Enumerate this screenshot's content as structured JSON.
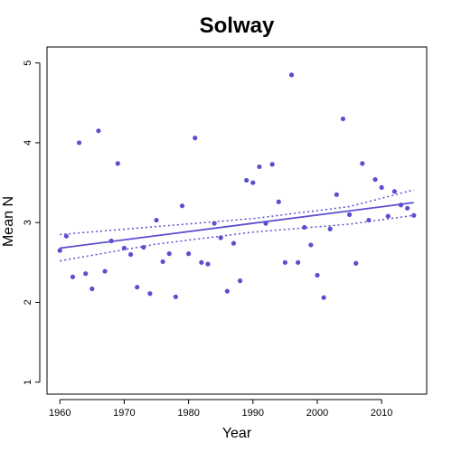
{
  "chart_data": {
    "type": "scatter",
    "title": "Solway",
    "xlabel": "Year",
    "ylabel": "Mean N",
    "xlim": [
      1958,
      2017
    ],
    "ylim": [
      0.85,
      5.2
    ],
    "x_ticks": [
      1960,
      1970,
      1980,
      1990,
      2000,
      2010
    ],
    "y_ticks": [
      1,
      2,
      3,
      4,
      5
    ],
    "grid": false,
    "point_color": "#5a4fcf",
    "line_color": "#5a4fcf",
    "points": [
      {
        "x": 1960,
        "y": 2.65
      },
      {
        "x": 1961,
        "y": 2.83
      },
      {
        "x": 1962,
        "y": 2.32
      },
      {
        "x": 1963,
        "y": 4.0
      },
      {
        "x": 1964,
        "y": 2.36
      },
      {
        "x": 1965,
        "y": 2.17
      },
      {
        "x": 1966,
        "y": 4.15
      },
      {
        "x": 1967,
        "y": 2.39
      },
      {
        "x": 1968,
        "y": 2.77
      },
      {
        "x": 1969,
        "y": 3.74
      },
      {
        "x": 1970,
        "y": 2.68
      },
      {
        "x": 1971,
        "y": 2.6
      },
      {
        "x": 1972,
        "y": 2.19
      },
      {
        "x": 1973,
        "y": 2.69
      },
      {
        "x": 1974,
        "y": 2.11
      },
      {
        "x": 1975,
        "y": 3.03
      },
      {
        "x": 1976,
        "y": 2.51
      },
      {
        "x": 1977,
        "y": 2.61
      },
      {
        "x": 1978,
        "y": 2.07
      },
      {
        "x": 1979,
        "y": 3.21
      },
      {
        "x": 1980,
        "y": 2.61
      },
      {
        "x": 1981,
        "y": 4.06
      },
      {
        "x": 1982,
        "y": 2.5
      },
      {
        "x": 1983,
        "y": 2.48
      },
      {
        "x": 1984,
        "y": 2.99
      },
      {
        "x": 1985,
        "y": 2.81
      },
      {
        "x": 1986,
        "y": 2.14
      },
      {
        "x": 1987,
        "y": 2.74
      },
      {
        "x": 1988,
        "y": 2.27
      },
      {
        "x": 1989,
        "y": 3.53
      },
      {
        "x": 1990,
        "y": 3.5
      },
      {
        "x": 1991,
        "y": 3.7
      },
      {
        "x": 1992,
        "y": 2.99
      },
      {
        "x": 1993,
        "y": 3.73
      },
      {
        "x": 1994,
        "y": 3.26
      },
      {
        "x": 1995,
        "y": 2.5
      },
      {
        "x": 1996,
        "y": 4.85
      },
      {
        "x": 1997,
        "y": 2.5
      },
      {
        "x": 1998,
        "y": 2.94
      },
      {
        "x": 1999,
        "y": 2.72
      },
      {
        "x": 2000,
        "y": 2.34
      },
      {
        "x": 2001,
        "y": 2.06
      },
      {
        "x": 2002,
        "y": 2.92
      },
      {
        "x": 2003,
        "y": 3.35
      },
      {
        "x": 2004,
        "y": 4.3
      },
      {
        "x": 2005,
        "y": 3.1
      },
      {
        "x": 2006,
        "y": 2.49
      },
      {
        "x": 2007,
        "y": 3.74
      },
      {
        "x": 2008,
        "y": 3.03
      },
      {
        "x": 2009,
        "y": 3.54
      },
      {
        "x": 2010,
        "y": 3.44
      },
      {
        "x": 2011,
        "y": 3.08
      },
      {
        "x": 2012,
        "y": 3.39
      },
      {
        "x": 2013,
        "y": 3.22
      },
      {
        "x": 2014,
        "y": 3.18
      },
      {
        "x": 2015,
        "y": 3.09
      }
    ],
    "trend_line": {
      "x": [
        1960,
        2015
      ],
      "y": [
        2.68,
        3.25
      ]
    },
    "confidence_band_upper": {
      "x": [
        1960,
        1975,
        1990,
        2005,
        2015
      ],
      "y": [
        2.85,
        2.95,
        3.05,
        3.2,
        3.41
      ]
    },
    "confidence_band_lower": {
      "x": [
        1960,
        1975,
        1990,
        2005,
        2015
      ],
      "y": [
        2.52,
        2.73,
        2.88,
        2.98,
        3.09
      ]
    }
  }
}
